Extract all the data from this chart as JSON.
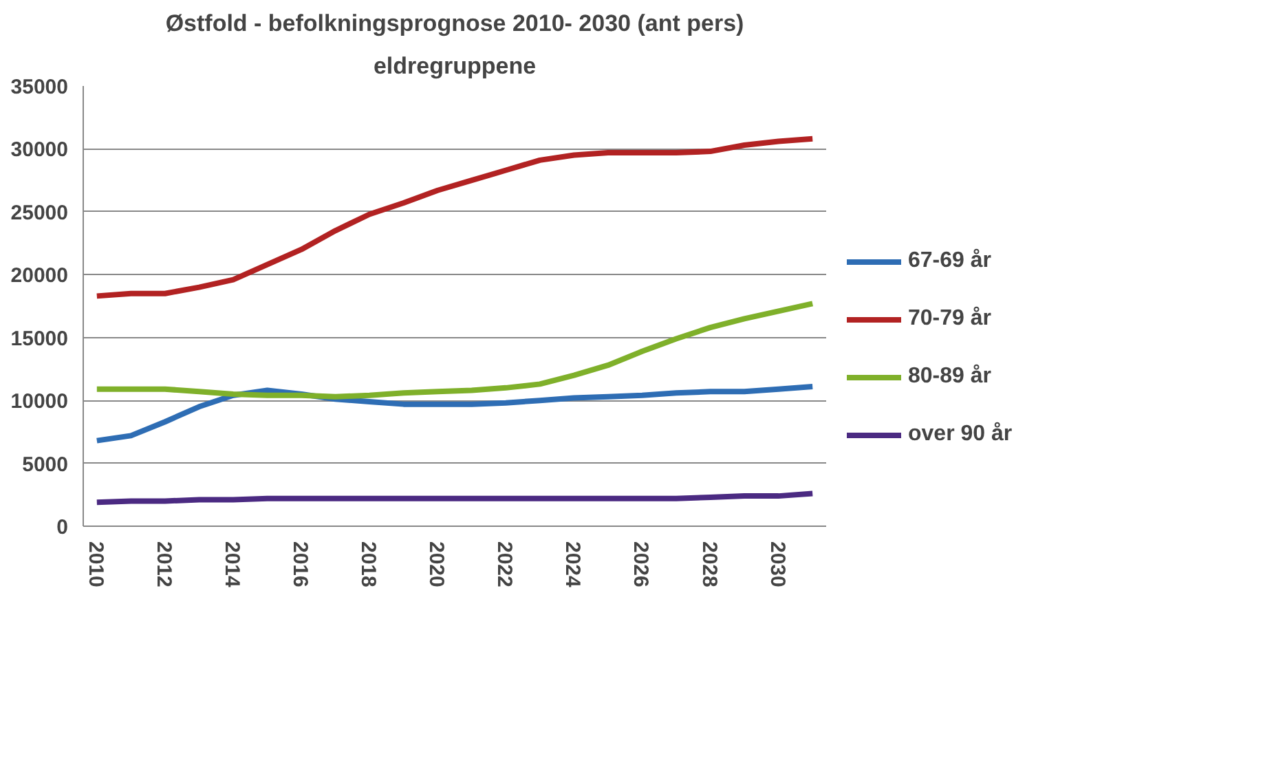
{
  "chart_data": {
    "type": "line",
    "title": "Østfold - befolkningsprognose 2010- 2030 (ant pers)",
    "subtitle": "eldregruppene",
    "categories": [
      "2010",
      null,
      "2012",
      null,
      "2014",
      null,
      "2016",
      null,
      "2018",
      null,
      "2020",
      null,
      "2022",
      null,
      "2024",
      null,
      "2026",
      null,
      "2028",
      null,
      "2030",
      null
    ],
    "series": [
      {
        "name": "67-69 år",
        "color": "#2e6db4",
        "values": [
          6800,
          7200,
          8300,
          9500,
          10400,
          10800,
          10500,
          10100,
          9900,
          9700,
          9700,
          9700,
          9800,
          10000,
          10200,
          10300,
          10400,
          10600,
          10700,
          10700,
          10900,
          11100
        ]
      },
      {
        "name": "70-79 år",
        "color": "#b22222",
        "values": [
          18300,
          18500,
          18500,
          19000,
          19600,
          20800,
          22000,
          23500,
          24800,
          25700,
          26700,
          27500,
          28300,
          29100,
          29500,
          29700,
          29700,
          29700,
          29800,
          30300,
          30600,
          30800
        ]
      },
      {
        "name": "80-89 år",
        "color": "#7fb02a",
        "values": [
          10900,
          10900,
          10900,
          10700,
          10500,
          10400,
          10400,
          10300,
          10400,
          10600,
          10700,
          10800,
          11000,
          11300,
          12000,
          12800,
          13900,
          14900,
          15800,
          16500,
          17100,
          17700
        ]
      },
      {
        "name": "over 90 år",
        "color": "#4b2a82",
        "values": [
          1900,
          2000,
          2000,
          2100,
          2100,
          2200,
          2200,
          2200,
          2200,
          2200,
          2200,
          2200,
          2200,
          2200,
          2200,
          2200,
          2200,
          2200,
          2300,
          2400,
          2400,
          2600
        ]
      }
    ],
    "ylim": [
      0,
      35000
    ],
    "yticks": [
      0,
      5000,
      10000,
      15000,
      20000,
      25000,
      30000,
      35000
    ],
    "grid": "y",
    "legend": "right",
    "marker": "none",
    "line_style": "solid"
  }
}
